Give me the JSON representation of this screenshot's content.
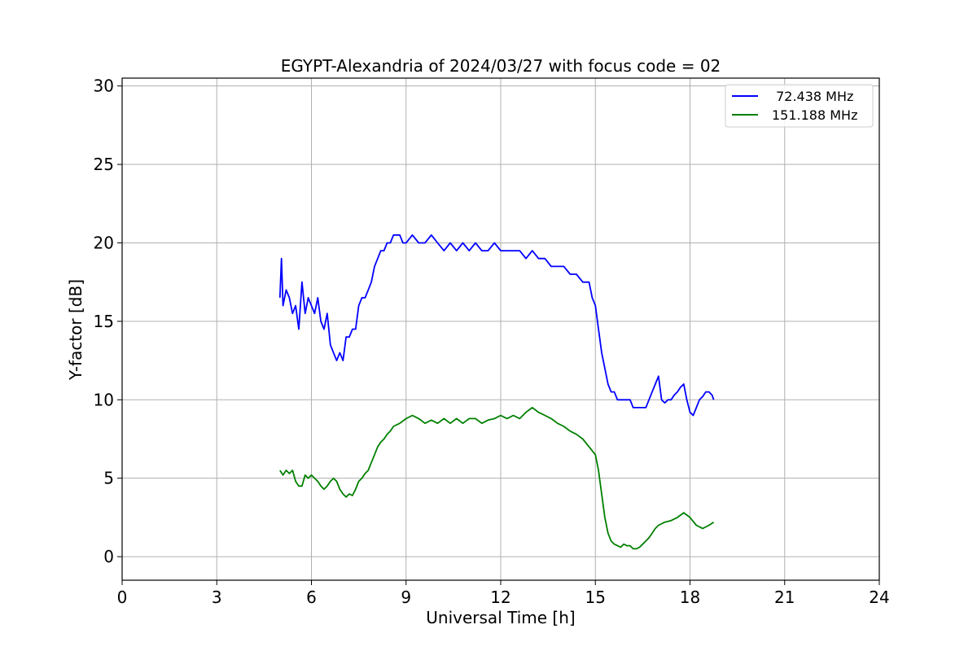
{
  "chart_data": {
    "type": "line",
    "title": "EGYPT-Alexandria of 2024/03/27 with focus code = 02",
    "xlabel": "Universal Time [h]",
    "ylabel": "Y-factor [dB]",
    "xlim": [
      0,
      24
    ],
    "ylim": [
      -1.5,
      30.5
    ],
    "xticks": [
      0,
      3,
      6,
      9,
      12,
      15,
      18,
      21,
      24
    ],
    "yticks": [
      0,
      5,
      10,
      15,
      20,
      25,
      30
    ],
    "grid": true,
    "legend_position": "upper right",
    "series": [
      {
        "name": " 72.438 MHz",
        "color": "#0000ff",
        "x": [
          5.0,
          5.05,
          5.1,
          5.2,
          5.3,
          5.4,
          5.5,
          5.6,
          5.7,
          5.8,
          5.9,
          6.0,
          6.1,
          6.2,
          6.3,
          6.4,
          6.5,
          6.6,
          6.7,
          6.8,
          6.9,
          7.0,
          7.1,
          7.2,
          7.3,
          7.4,
          7.5,
          7.6,
          7.7,
          7.8,
          7.9,
          8.0,
          8.1,
          8.2,
          8.3,
          8.4,
          8.5,
          8.6,
          8.7,
          8.8,
          8.9,
          9.0,
          9.2,
          9.4,
          9.6,
          9.8,
          10.0,
          10.2,
          10.4,
          10.6,
          10.8,
          11.0,
          11.2,
          11.4,
          11.6,
          11.8,
          12.0,
          12.2,
          12.4,
          12.6,
          12.8,
          13.0,
          13.2,
          13.4,
          13.6,
          13.8,
          14.0,
          14.2,
          14.4,
          14.6,
          14.8,
          14.9,
          15.0,
          15.1,
          15.2,
          15.3,
          15.4,
          15.5,
          15.6,
          15.7,
          15.8,
          15.9,
          16.0,
          16.1,
          16.2,
          16.3,
          16.4,
          16.5,
          16.6,
          16.7,
          16.8,
          16.9,
          17.0,
          17.1,
          17.2,
          17.3,
          17.4,
          17.5,
          17.6,
          17.7,
          17.8,
          17.9,
          18.0,
          18.1,
          18.2,
          18.3,
          18.4,
          18.5,
          18.6,
          18.7,
          18.75
        ],
        "y": [
          16.5,
          19.0,
          16.0,
          17.0,
          16.5,
          15.5,
          16.0,
          14.5,
          17.5,
          15.5,
          16.5,
          16.0,
          15.5,
          16.5,
          15.0,
          14.5,
          15.5,
          13.5,
          13.0,
          12.5,
          13.0,
          12.5,
          14.0,
          14.0,
          14.5,
          14.5,
          16.0,
          16.5,
          16.5,
          17.0,
          17.5,
          18.5,
          19.0,
          19.5,
          19.5,
          20.0,
          20.0,
          20.5,
          20.5,
          20.5,
          20.0,
          20.0,
          20.5,
          20.0,
          20.0,
          20.5,
          20.0,
          19.5,
          20.0,
          19.5,
          20.0,
          19.5,
          20.0,
          19.5,
          19.5,
          20.0,
          19.5,
          19.5,
          19.5,
          19.5,
          19.0,
          19.5,
          19.0,
          19.0,
          18.5,
          18.5,
          18.5,
          18.0,
          18.0,
          17.5,
          17.5,
          16.5,
          16.0,
          14.5,
          13.0,
          12.0,
          11.0,
          10.5,
          10.5,
          10.0,
          10.0,
          10.0,
          10.0,
          10.0,
          9.5,
          9.5,
          9.5,
          9.5,
          9.5,
          10.0,
          10.5,
          11.0,
          11.5,
          10.0,
          9.8,
          10.0,
          10.0,
          10.3,
          10.5,
          10.8,
          11.0,
          10.0,
          9.2,
          9.0,
          9.5,
          10.0,
          10.2,
          10.5,
          10.5,
          10.3,
          10.0
        ]
      },
      {
        "name": "151.188 MHz",
        "color": "#008000",
        "x": [
          5.0,
          5.1,
          5.2,
          5.3,
          5.4,
          5.5,
          5.6,
          5.7,
          5.8,
          5.9,
          6.0,
          6.1,
          6.2,
          6.3,
          6.4,
          6.5,
          6.6,
          6.7,
          6.8,
          6.9,
          7.0,
          7.1,
          7.2,
          7.3,
          7.4,
          7.5,
          7.6,
          7.7,
          7.8,
          7.9,
          8.0,
          8.1,
          8.2,
          8.3,
          8.4,
          8.5,
          8.6,
          8.8,
          9.0,
          9.2,
          9.4,
          9.6,
          9.8,
          10.0,
          10.2,
          10.4,
          10.6,
          10.8,
          11.0,
          11.2,
          11.4,
          11.6,
          11.8,
          12.0,
          12.2,
          12.4,
          12.6,
          12.8,
          13.0,
          13.2,
          13.4,
          13.6,
          13.8,
          14.0,
          14.2,
          14.4,
          14.6,
          14.8,
          15.0,
          15.1,
          15.2,
          15.3,
          15.4,
          15.5,
          15.6,
          15.7,
          15.8,
          15.9,
          16.0,
          16.1,
          16.2,
          16.3,
          16.4,
          16.5,
          16.6,
          16.7,
          16.8,
          16.9,
          17.0,
          17.2,
          17.4,
          17.6,
          17.8,
          18.0,
          18.2,
          18.4,
          18.6,
          18.75
        ],
        "y": [
          5.5,
          5.2,
          5.5,
          5.3,
          5.5,
          4.8,
          4.5,
          4.5,
          5.2,
          5.0,
          5.2,
          5.0,
          4.8,
          4.5,
          4.3,
          4.5,
          4.8,
          5.0,
          4.8,
          4.3,
          4.0,
          3.8,
          4.0,
          3.9,
          4.3,
          4.8,
          5.0,
          5.3,
          5.5,
          6.0,
          6.5,
          7.0,
          7.3,
          7.5,
          7.8,
          8.0,
          8.3,
          8.5,
          8.8,
          9.0,
          8.8,
          8.5,
          8.7,
          8.5,
          8.8,
          8.5,
          8.8,
          8.5,
          8.8,
          8.8,
          8.5,
          8.7,
          8.8,
          9.0,
          8.8,
          9.0,
          8.8,
          9.2,
          9.5,
          9.2,
          9.0,
          8.8,
          8.5,
          8.3,
          8.0,
          7.8,
          7.5,
          7.0,
          6.5,
          5.5,
          4.0,
          2.5,
          1.5,
          1.0,
          0.8,
          0.7,
          0.6,
          0.8,
          0.7,
          0.7,
          0.5,
          0.5,
          0.6,
          0.8,
          1.0,
          1.2,
          1.5,
          1.8,
          2.0,
          2.2,
          2.3,
          2.5,
          2.8,
          2.5,
          2.0,
          1.8,
          2.0,
          2.2
        ]
      }
    ]
  }
}
